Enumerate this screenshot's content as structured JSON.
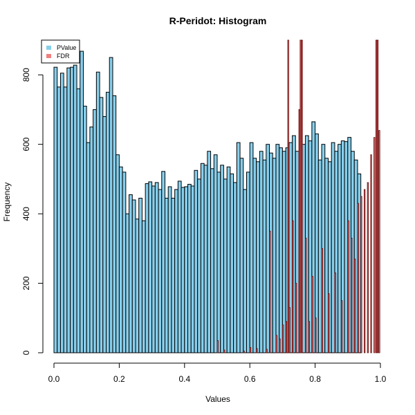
{
  "chart_data": {
    "type": "bar",
    "title": "R-Peridot: Histogram",
    "xlabel": "Values",
    "ylabel": "Frequency",
    "xlim": [
      0,
      1
    ],
    "ylim": [
      0,
      900
    ],
    "x_ticks": [
      "0.0",
      "0.2",
      "0.4",
      "0.6",
      "0.8",
      "1.0"
    ],
    "y_ticks": [
      "0",
      "200",
      "400",
      "600",
      "800"
    ],
    "grid": false,
    "legend_position": "top-left",
    "series": [
      {
        "name": "PValue",
        "color": "#87CEEB",
        "bin_width": 0.01,
        "values": [
          822,
          765,
          805,
          765,
          820,
          822,
          828,
          760,
          868,
          710,
          605,
          650,
          700,
          808,
          735,
          680,
          750,
          850,
          740,
          570,
          535,
          520,
          400,
          455,
          440,
          385,
          445,
          380,
          487,
          492,
          480,
          490,
          470,
          522,
          445,
          478,
          445,
          470,
          494,
          476,
          478,
          485,
          480,
          525,
          500,
          545,
          540,
          580,
          530,
          570,
          520,
          540,
          500,
          535,
          515,
          490,
          605,
          560,
          470,
          520,
          605,
          560,
          550,
          580,
          555,
          600,
          575,
          560,
          600,
          590,
          580,
          590,
          605,
          625,
          580,
          580,
          600,
          625,
          610,
          665,
          630,
          555,
          600,
          560,
          550,
          605,
          580,
          600,
          610,
          608,
          620,
          580,
          555,
          515
        ]
      },
      {
        "name": "FDR",
        "color": "#F08080",
        "bin_width": 0.002,
        "values": [
          {
            "x": 0.5,
            "v": 35
          },
          {
            "x": 0.52,
            "v": 8
          },
          {
            "x": 0.58,
            "v": 5
          },
          {
            "x": 0.6,
            "v": 15
          },
          {
            "x": 0.62,
            "v": 12
          },
          {
            "x": 0.65,
            "v": 10
          },
          {
            "x": 0.66,
            "v": 350
          },
          {
            "x": 0.68,
            "v": 50
          },
          {
            "x": 0.69,
            "v": 40
          },
          {
            "x": 0.7,
            "v": 80
          },
          {
            "x": 0.71,
            "v": 90
          },
          {
            "x": 0.716,
            "v": 900
          },
          {
            "x": 0.72,
            "v": 130
          },
          {
            "x": 0.73,
            "v": 380
          },
          {
            "x": 0.74,
            "v": 200
          },
          {
            "x": 0.75,
            "v": 700
          },
          {
            "x": 0.754,
            "v": 900
          },
          {
            "x": 0.758,
            "v": 900
          },
          {
            "x": 0.77,
            "v": 330
          },
          {
            "x": 0.78,
            "v": 90
          },
          {
            "x": 0.79,
            "v": 220
          },
          {
            "x": 0.8,
            "v": 100
          },
          {
            "x": 0.82,
            "v": 300
          },
          {
            "x": 0.84,
            "v": 170
          },
          {
            "x": 0.86,
            "v": 230
          },
          {
            "x": 0.88,
            "v": 150
          },
          {
            "x": 0.9,
            "v": 380
          },
          {
            "x": 0.91,
            "v": 330
          },
          {
            "x": 0.92,
            "v": 270
          },
          {
            "x": 0.93,
            "v": 430
          },
          {
            "x": 0.94,
            "v": 450
          },
          {
            "x": 0.95,
            "v": 470
          },
          {
            "x": 0.96,
            "v": 490
          },
          {
            "x": 0.97,
            "v": 570
          },
          {
            "x": 0.98,
            "v": 620
          },
          {
            "x": 0.986,
            "v": 900
          },
          {
            "x": 0.99,
            "v": 900
          },
          {
            "x": 0.995,
            "v": 640
          }
        ]
      }
    ]
  }
}
